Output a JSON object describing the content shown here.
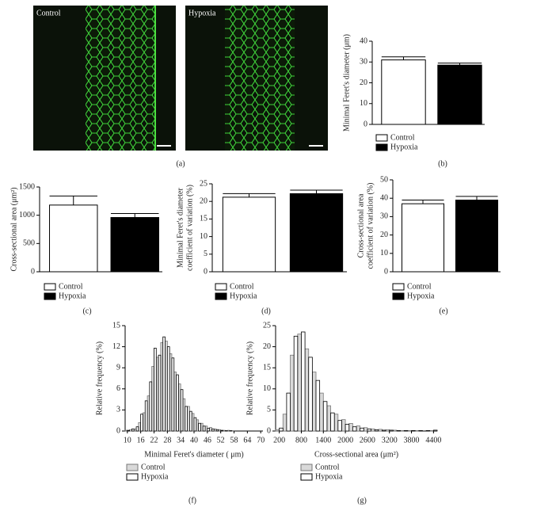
{
  "chart_data": [
    {
      "type": "image",
      "panel": "(a)",
      "labels": [
        "Control",
        "Hypoxia"
      ]
    },
    {
      "type": "bar",
      "panel": "(b)",
      "ylabel": "Minimal Feret's diameter (μm)",
      "categories": [
        "Control",
        "Hypoxia"
      ],
      "values": [
        31,
        28.5
      ],
      "errors": [
        1.5,
        1
      ],
      "colors": [
        "#ffffff",
        "#000000"
      ],
      "ylim": [
        0,
        40
      ],
      "yticks": [
        0,
        10,
        20,
        30,
        40
      ]
    },
    {
      "type": "bar",
      "panel": "(c)",
      "ylabel": "Cross-sectional area (μm²)",
      "categories": [
        "Control",
        "Hypoxia"
      ],
      "values": [
        1180,
        960
      ],
      "errors": [
        160,
        70
      ],
      "colors": [
        "#ffffff",
        "#000000"
      ],
      "ylim": [
        0,
        1500
      ],
      "yticks": [
        0,
        500,
        1000,
        1500
      ]
    },
    {
      "type": "bar",
      "panel": "(d)",
      "ylabel": [
        "Minimal Feret's diameter",
        "coefficient of variation (%)"
      ],
      "categories": [
        "Control",
        "Hypoxia"
      ],
      "values": [
        21.2,
        22.2
      ],
      "errors": [
        1,
        1
      ],
      "colors": [
        "#ffffff",
        "#000000"
      ],
      "ylim": [
        0,
        25
      ],
      "yticks": [
        0,
        5,
        10,
        15,
        20,
        25
      ]
    },
    {
      "type": "bar",
      "panel": "(e)",
      "ylabel": [
        "Cross-sectional area",
        "coefficient of variation (%)"
      ],
      "categories": [
        "Control",
        "Hypoxia"
      ],
      "values": [
        37,
        39
      ],
      "errors": [
        2,
        2
      ],
      "colors": [
        "#ffffff",
        "#000000"
      ],
      "ylim": [
        0,
        50
      ],
      "yticks": [
        0,
        10,
        20,
        30,
        40,
        50
      ]
    },
    {
      "type": "histogram",
      "panel": "(f)",
      "xlabel": "Minimal Feret's diameter ( μm)",
      "ylabel": "Relative frequency (%)",
      "x": [
        10,
        12,
        14,
        16,
        18,
        20,
        22,
        24,
        26,
        28,
        30,
        32,
        34,
        36,
        38,
        40,
        42,
        44,
        46,
        48,
        50,
        52,
        54,
        56,
        58,
        60,
        62,
        64,
        66,
        68,
        70
      ],
      "series": [
        {
          "name": "Control",
          "color": "#d9d9d9",
          "edgecolor": "#777777",
          "values": [
            0.1,
            0.2,
            0.3,
            1.2,
            2.6,
            5,
            9.2,
            10.5,
            12.6,
            12.8,
            11,
            8.4,
            6.7,
            4.6,
            3.5,
            2.5,
            1.6,
            1.1,
            0.7,
            0.5,
            0.3,
            0.2,
            0.1,
            0.1,
            0.05,
            0,
            0,
            0,
            0,
            0,
            0
          ]
        },
        {
          "name": "Hypoxia",
          "color": "#ffffff",
          "edgecolor": "#000000",
          "values": [
            0.1,
            0.3,
            0.6,
            2.4,
            4.3,
            7,
            11.8,
            10.8,
            13.4,
            12,
            10.4,
            8,
            5.9,
            3.5,
            2.8,
            1.9,
            1.1,
            0.7,
            0.4,
            0.3,
            0.2,
            0.1,
            0.05,
            0.05,
            0,
            0,
            0,
            0,
            0,
            0,
            0
          ]
        }
      ],
      "xlim": [
        9,
        71
      ],
      "xticks": [
        10,
        16,
        22,
        28,
        34,
        40,
        46,
        52,
        58,
        64,
        70
      ],
      "ylim": [
        0,
        15
      ],
      "yticks": [
        0,
        3,
        6,
        9,
        12,
        15
      ]
    },
    {
      "type": "histogram",
      "panel": "(g)",
      "xlabel": "Cross-sectional area (μm²)",
      "ylabel": "Relative frequency (%)",
      "x": [
        200,
        400,
        600,
        800,
        1000,
        1200,
        1400,
        1600,
        1800,
        2000,
        2200,
        2400,
        2600,
        2800,
        3000,
        3200,
        3400,
        3600,
        3800,
        4000,
        4200,
        4400
      ],
      "series": [
        {
          "name": "Control",
          "color": "#d9d9d9",
          "edgecolor": "#777777",
          "values": [
            0.3,
            4,
            18,
            23,
            19.5,
            14,
            9,
            6,
            4,
            2.7,
            1.8,
            1.2,
            0.8,
            0.5,
            0.4,
            0.3,
            0.2,
            0.1,
            0.1,
            0.1,
            0,
            0.1
          ]
        },
        {
          "name": "Hypoxia",
          "color": "#ffffff",
          "edgecolor": "#000000",
          "values": [
            0.7,
            9,
            22.5,
            23.5,
            17.5,
            12,
            7,
            4.3,
            2.5,
            1.6,
            1,
            0.7,
            0.5,
            0.3,
            0.2,
            0.2,
            0.1,
            0.1,
            0.1,
            0.1,
            0.1,
            0.2
          ]
        }
      ],
      "xlim": [
        100,
        4500
      ],
      "xticks": [
        200,
        800,
        1400,
        2000,
        2600,
        3200,
        3800,
        4400
      ],
      "ylim": [
        0,
        25
      ],
      "yticks": [
        0,
        5,
        10,
        15,
        20,
        25
      ]
    }
  ]
}
